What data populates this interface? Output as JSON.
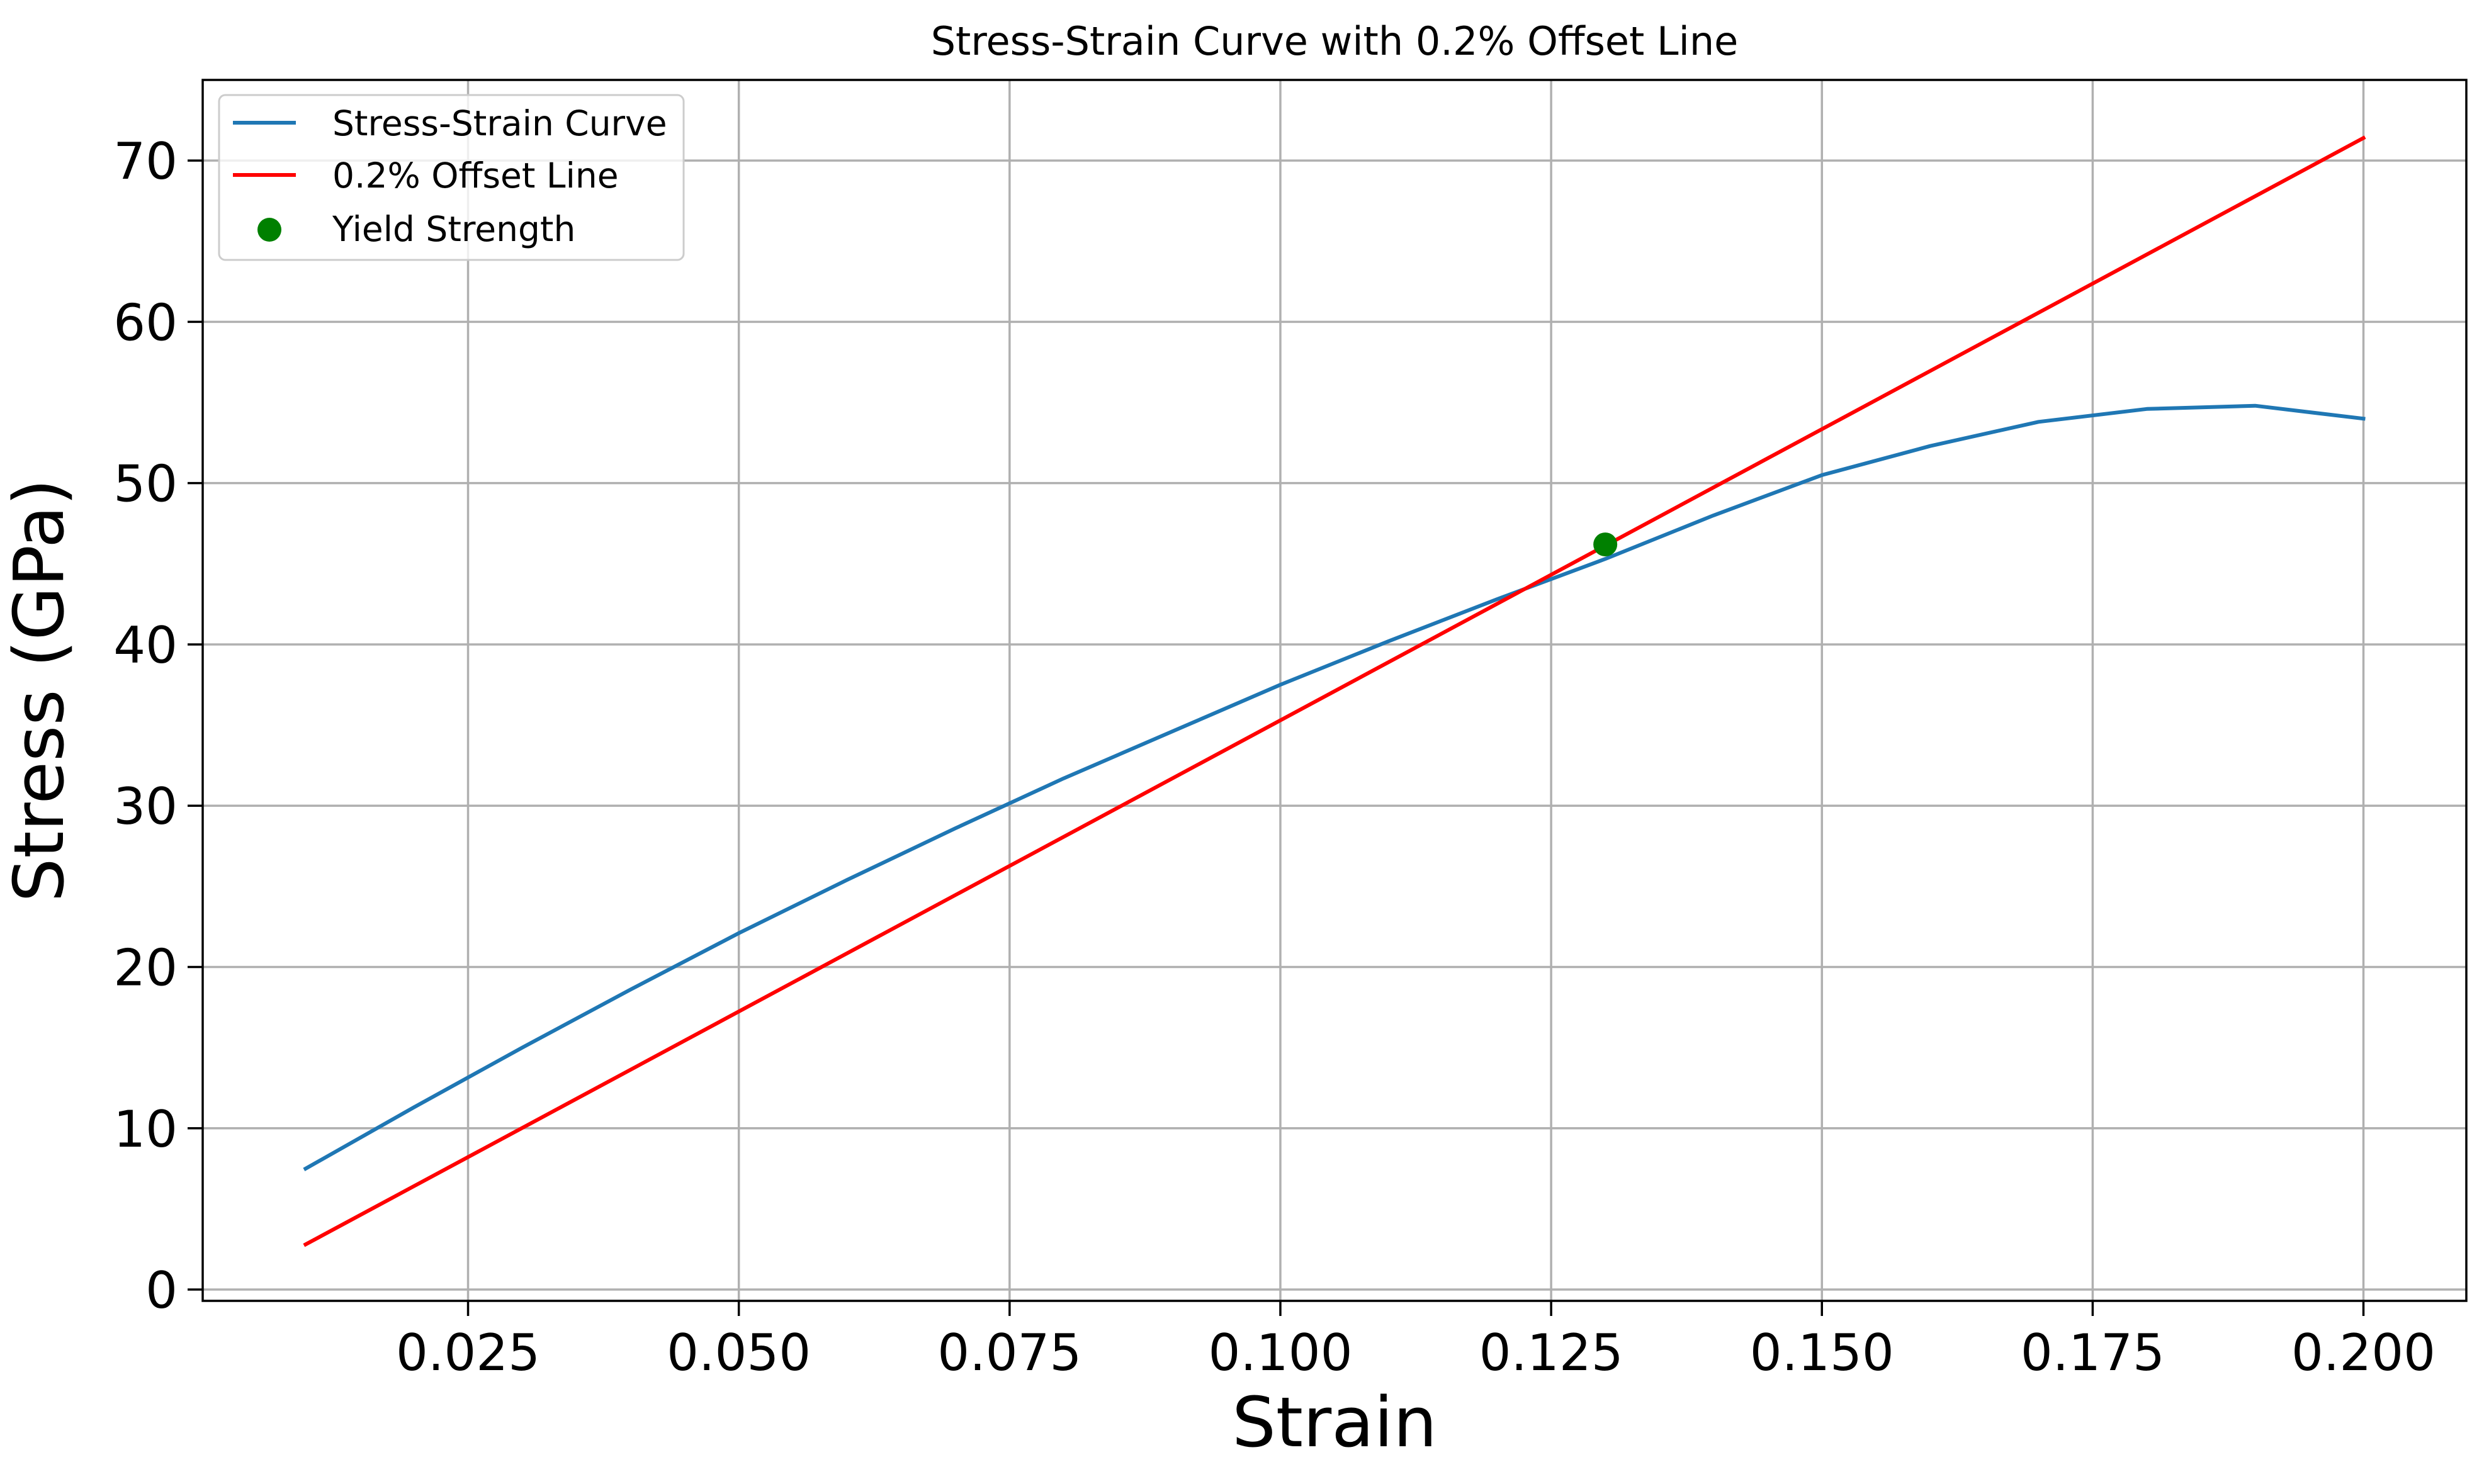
{
  "chart_data": {
    "type": "line",
    "title": "Stress-Strain Curve with 0.2% Offset Line",
    "xlabel": "Strain",
    "ylabel": "Stress (GPa)",
    "xlim": [
      0.0005,
      0.2095
    ],
    "ylim": [
      -0.7,
      75
    ],
    "xticks": [
      0.025,
      0.05,
      0.075,
      0.1,
      0.125,
      0.15,
      0.175,
      0.2
    ],
    "xtick_labels": [
      "0.025",
      "0.050",
      "0.075",
      "0.100",
      "0.125",
      "0.150",
      "0.175",
      "0.200"
    ],
    "yticks": [
      0,
      10,
      20,
      30,
      40,
      50,
      60,
      70
    ],
    "ytick_labels": [
      "0",
      "10",
      "20",
      "30",
      "40",
      "50",
      "60",
      "70"
    ],
    "grid": true,
    "legend_position": "top-left",
    "series": [
      {
        "name": "Stress-Strain Curve",
        "kind": "line",
        "color": "#1f77b4",
        "x": [
          0.01,
          0.02,
          0.03,
          0.04,
          0.05,
          0.06,
          0.07,
          0.08,
          0.09,
          0.1,
          0.11,
          0.12,
          0.13,
          0.14,
          0.15,
          0.16,
          0.17,
          0.18,
          0.19,
          0.2
        ],
        "y": [
          7.5,
          11.3,
          15.0,
          18.6,
          22.1,
          25.4,
          28.6,
          31.7,
          34.6,
          37.5,
          40.2,
          42.8,
          45.3,
          48.0,
          50.5,
          52.3,
          53.8,
          54.6,
          54.8,
          54.0
        ]
      },
      {
        "name": "0.2% Offset Line",
        "kind": "line",
        "color": "#ff0000",
        "x": [
          0.01,
          0.2
        ],
        "y": [
          2.8,
          71.4
        ]
      },
      {
        "name": "Yield Strength",
        "kind": "scatter",
        "color": "#008000",
        "x": [
          0.13
        ],
        "y": [
          46.2
        ]
      }
    ]
  }
}
